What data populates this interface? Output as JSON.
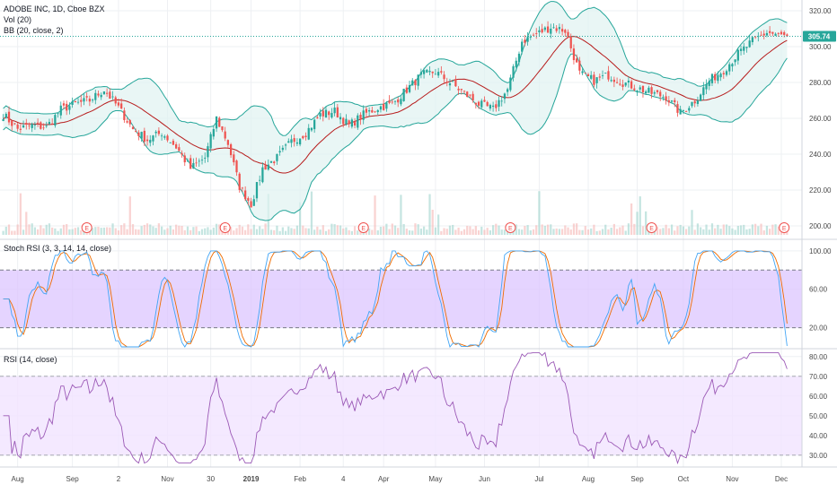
{
  "header": {
    "symbol_line": "ADOBE INC, 1D, Cboe BZX",
    "vol_label": "Vol (20)",
    "bb_label": "BB (20, close, 2)",
    "stoch_label": "Stoch RSI (3, 3, 14, 14, close)",
    "rsi_label": "RSI (14, close)"
  },
  "colors": {
    "up": "#26a69a",
    "down": "#ef5350",
    "bb_line": "#26a69a",
    "bb_mid": "#b71c1c",
    "bb_fill": "#e0f2f1",
    "stoch_k": "#42a5f5",
    "stoch_d": "#ef6c00",
    "stoch_band": "#dcc6ff",
    "rsi_line": "#9b59b6",
    "rsi_band": "#f1e4ff",
    "price_tag": "#26a69a",
    "earnings": "#ef5350"
  },
  "chart_data": [
    {
      "type": "candlestick",
      "name": "price",
      "price_label": "305.74",
      "last_price": 305.74,
      "ylim": [
        193,
        326
      ],
      "y_ticks": [
        200,
        220,
        240,
        260,
        280,
        300,
        320
      ],
      "y_tick_labels": [
        "200.00",
        "220.00",
        "240.00",
        "260.00",
        "280.00",
        "300.00",
        "320.00"
      ],
      "x_labels": [
        "Aug",
        "Sep",
        "2",
        "Nov",
        "30",
        "2019",
        "Feb",
        "4",
        "Apr",
        "May",
        "Jun",
        "Jul",
        "Aug",
        "Sep",
        "Oct",
        "Nov",
        "Dec"
      ],
      "x_label_index": [
        5,
        24,
        40,
        57,
        72,
        86,
        103,
        118,
        132,
        150,
        167,
        186,
        203,
        220,
        236,
        253,
        270
      ],
      "earnings_markers": [
        "E",
        "E",
        "E",
        "E",
        "E",
        "E"
      ],
      "earnings_index": [
        29,
        77,
        125,
        176,
        225,
        271
      ],
      "close_anchors": [
        [
          0,
          262
        ],
        [
          5,
          254
        ],
        [
          10,
          256
        ],
        [
          15,
          255
        ],
        [
          20,
          265
        ],
        [
          25,
          268
        ],
        [
          30,
          270
        ],
        [
          35,
          276
        ],
        [
          40,
          266
        ],
        [
          45,
          254
        ],
        [
          50,
          248
        ],
        [
          55,
          252
        ],
        [
          60,
          244
        ],
        [
          65,
          232
        ],
        [
          70,
          238
        ],
        [
          74,
          260
        ],
        [
          78,
          246
        ],
        [
          82,
          222
        ],
        [
          86,
          212
        ],
        [
          90,
          232
        ],
        [
          95,
          238
        ],
        [
          100,
          247
        ],
        [
          105,
          252
        ],
        [
          110,
          262
        ],
        [
          115,
          264
        ],
        [
          120,
          256
        ],
        [
          125,
          262
        ],
        [
          130,
          266
        ],
        [
          135,
          268
        ],
        [
          140,
          276
        ],
        [
          145,
          284
        ],
        [
          150,
          286
        ],
        [
          155,
          280
        ],
        [
          160,
          274
        ],
        [
          165,
          268
        ],
        [
          170,
          265
        ],
        [
          175,
          276
        ],
        [
          180,
          303
        ],
        [
          185,
          307
        ],
        [
          190,
          311
        ],
        [
          195,
          309
        ],
        [
          200,
          285
        ],
        [
          205,
          281
        ],
        [
          210,
          284
        ],
        [
          215,
          280
        ],
        [
          220,
          277
        ],
        [
          225,
          274
        ],
        [
          230,
          272
        ],
        [
          235,
          263
        ],
        [
          240,
          270
        ],
        [
          245,
          281
        ],
        [
          250,
          287
        ],
        [
          255,
          296
        ],
        [
          260,
          303
        ],
        [
          265,
          308
        ],
        [
          270,
          306
        ],
        [
          272,
          305.74
        ]
      ]
    },
    {
      "type": "line",
      "name": "stoch_rsi",
      "ylim": [
        0,
        112
      ],
      "y_ticks": [
        20,
        60,
        100
      ],
      "y_tick_labels": [
        "20.00",
        "60.00",
        "100.00"
      ],
      "band": [
        20,
        80
      ]
    },
    {
      "type": "line",
      "name": "rsi",
      "ylim": [
        24,
        84
      ],
      "y_ticks": [
        30,
        40,
        50,
        60,
        70,
        80
      ],
      "y_tick_labels": [
        "30.00",
        "40.00",
        "50.00",
        "60.00",
        "70.00",
        "80.00"
      ],
      "band": [
        30,
        70
      ]
    }
  ]
}
